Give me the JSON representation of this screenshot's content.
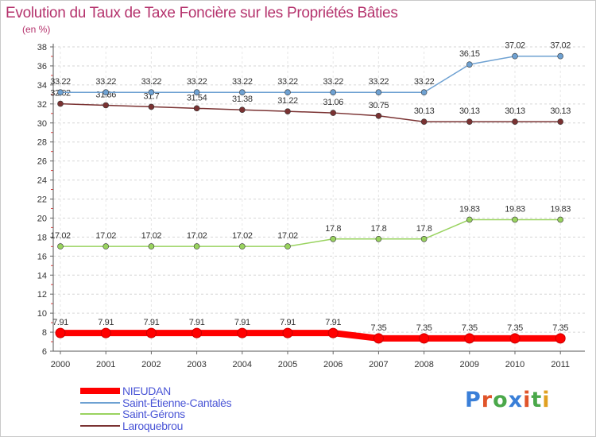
{
  "title": "Evolution du Taux de Taxe Foncière sur les Propriétés Bâties",
  "unit_label": "(en %)",
  "logo": {
    "text": "Proxiti",
    "letter_colors": [
      "#3a7fd8",
      "#e0542a",
      "#4aa84a",
      "#3a7fd8",
      "#e0542a",
      "#4aa84a",
      "#e0a020"
    ]
  },
  "chart_data": {
    "type": "line",
    "x": [
      "2000",
      "2001",
      "2002",
      "2003",
      "2004",
      "2005",
      "2006",
      "2007",
      "2008",
      "2009",
      "2010",
      "2011"
    ],
    "ylim": [
      6,
      38
    ],
    "yticks": [
      6,
      8,
      10,
      12,
      14,
      16,
      18,
      20,
      22,
      24,
      26,
      28,
      30,
      32,
      34,
      36,
      38
    ],
    "grid": "horizontal dashed",
    "legend_position": "bottom-left",
    "series": [
      {
        "name": "NIEUDAN",
        "color": "#ff0000",
        "values": [
          7.91,
          7.91,
          7.91,
          7.91,
          7.91,
          7.91,
          7.91,
          7.35,
          7.35,
          7.35,
          7.35,
          7.35
        ],
        "labels": [
          "7.91",
          "7.91",
          "7.91",
          "7.91",
          "7.91",
          "7.91",
          "7.91",
          "7.35",
          "7.35",
          "7.35",
          "7.35",
          "7.35"
        ]
      },
      {
        "name": "Saint-Étienne-Cantalès",
        "color": "#6ea1d2",
        "values": [
          33.22,
          33.22,
          33.22,
          33.22,
          33.22,
          33.22,
          33.22,
          33.22,
          33.22,
          36.15,
          37.02,
          37.02
        ],
        "labels": [
          "33.22",
          "33.22",
          "33.22",
          "33.22",
          "33.22",
          "33.22",
          "33.22",
          "33.22",
          "33.22",
          "36.15",
          "37.02",
          "37.02"
        ]
      },
      {
        "name": "Saint-Gérons",
        "color": "#99d35f",
        "values": [
          17.02,
          17.02,
          17.02,
          17.02,
          17.02,
          17.02,
          17.8,
          17.8,
          17.8,
          19.83,
          19.83,
          19.83
        ],
        "labels": [
          "17.02",
          "17.02",
          "17.02",
          "17.02",
          "17.02",
          "17.02",
          "17.8",
          "17.8",
          "17.8",
          "19.83",
          "19.83",
          "19.83"
        ]
      },
      {
        "name": "Laroquebrou",
        "color": "#7a3232",
        "values": [
          32.02,
          31.86,
          31.7,
          31.54,
          31.38,
          31.22,
          31.06,
          30.75,
          30.13,
          30.13,
          30.13,
          30.13
        ],
        "labels": [
          "32.02",
          "31.86",
          "31.7",
          "31.54",
          "31.38",
          "31.22",
          "31.06",
          "30.75",
          "30.13",
          "30.13",
          "30.13",
          "30.13"
        ]
      }
    ]
  }
}
